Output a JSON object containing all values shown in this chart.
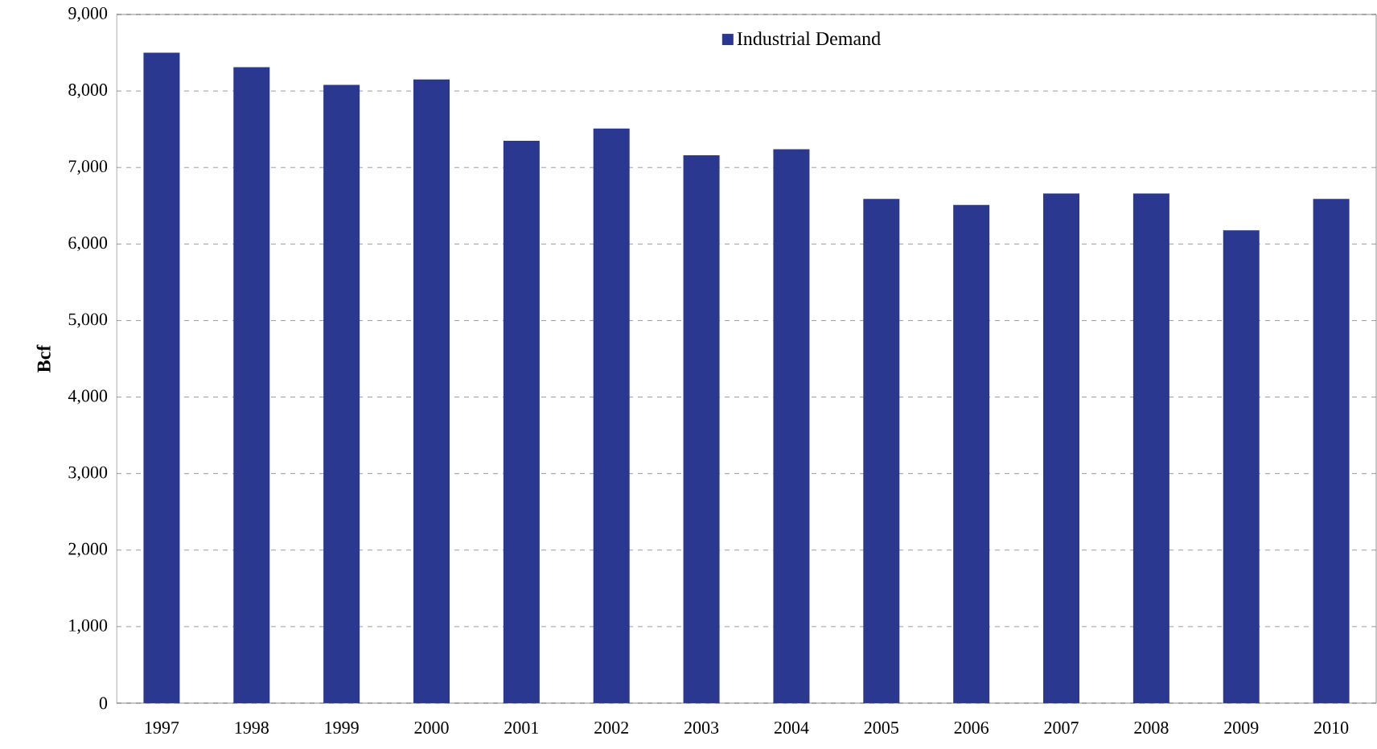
{
  "chart_data": {
    "type": "bar",
    "ylabel": "Bcf",
    "categories": [
      "1997",
      "1998",
      "1999",
      "2000",
      "2001",
      "2002",
      "2003",
      "2004",
      "2005",
      "2006",
      "2007",
      "2008",
      "2009",
      "2010"
    ],
    "series": [
      {
        "name": "Industrial Demand",
        "color": "#2b388f",
        "values": [
          8500,
          8310,
          8080,
          8150,
          7350,
          7510,
          7160,
          7240,
          6590,
          6510,
          6660,
          6660,
          6180,
          6590
        ]
      }
    ],
    "ylim": [
      0,
      9000
    ],
    "yticks": [
      {
        "value": 0,
        "label": "0"
      },
      {
        "value": 1000,
        "label": "1,000"
      },
      {
        "value": 2000,
        "label": "2,000"
      },
      {
        "value": 3000,
        "label": "3,000"
      },
      {
        "value": 4000,
        "label": "4,000"
      },
      {
        "value": 5000,
        "label": "5,000"
      },
      {
        "value": 6000,
        "label": "6,000"
      },
      {
        "value": 7000,
        "label": "7,000"
      },
      {
        "value": 8000,
        "label": "8,000"
      },
      {
        "value": 9000,
        "label": "9,000"
      }
    ],
    "grid": "y",
    "legend": "top"
  }
}
